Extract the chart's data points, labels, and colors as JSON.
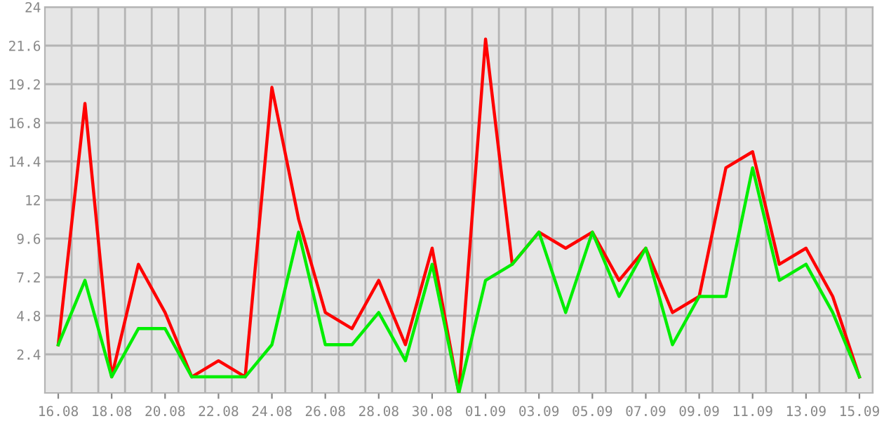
{
  "chart_data": {
    "type": "line",
    "categories": [
      "16.08",
      null,
      "18.08",
      null,
      "20.08",
      null,
      "22.08",
      null,
      "24.08",
      null,
      "26.08",
      null,
      "28.08",
      null,
      "30.08",
      null,
      "01.09",
      null,
      "03.09",
      null,
      "05.09",
      null,
      "07.09",
      null,
      "09.09",
      null,
      "11.09",
      null,
      "13.09",
      null,
      "15.09"
    ],
    "series": [
      {
        "color": "#ff0000",
        "values": [
          3,
          18,
          1,
          8,
          5,
          1,
          2,
          1,
          19,
          10.8,
          5,
          4,
          7,
          3,
          9,
          0,
          22,
          8,
          10,
          9,
          10,
          7,
          9,
          5,
          6,
          14,
          15,
          8,
          9,
          6,
          1
        ]
      },
      {
        "color": "#00ee00",
        "values": [
          3,
          7,
          1,
          4,
          4,
          1,
          1,
          1,
          3,
          10,
          3,
          3,
          5,
          2,
          8,
          0,
          7,
          8,
          10,
          5,
          10,
          6,
          9,
          3,
          6,
          6,
          14,
          7,
          8,
          5,
          1
        ]
      }
    ],
    "ylim": [
      0,
      24
    ],
    "yticks": [
      2.4,
      4.8,
      7.2,
      9.6,
      12,
      14.4,
      16.8,
      19.2,
      21.6,
      24
    ],
    "grid": true,
    "marker": "none",
    "line_style": "solid"
  }
}
